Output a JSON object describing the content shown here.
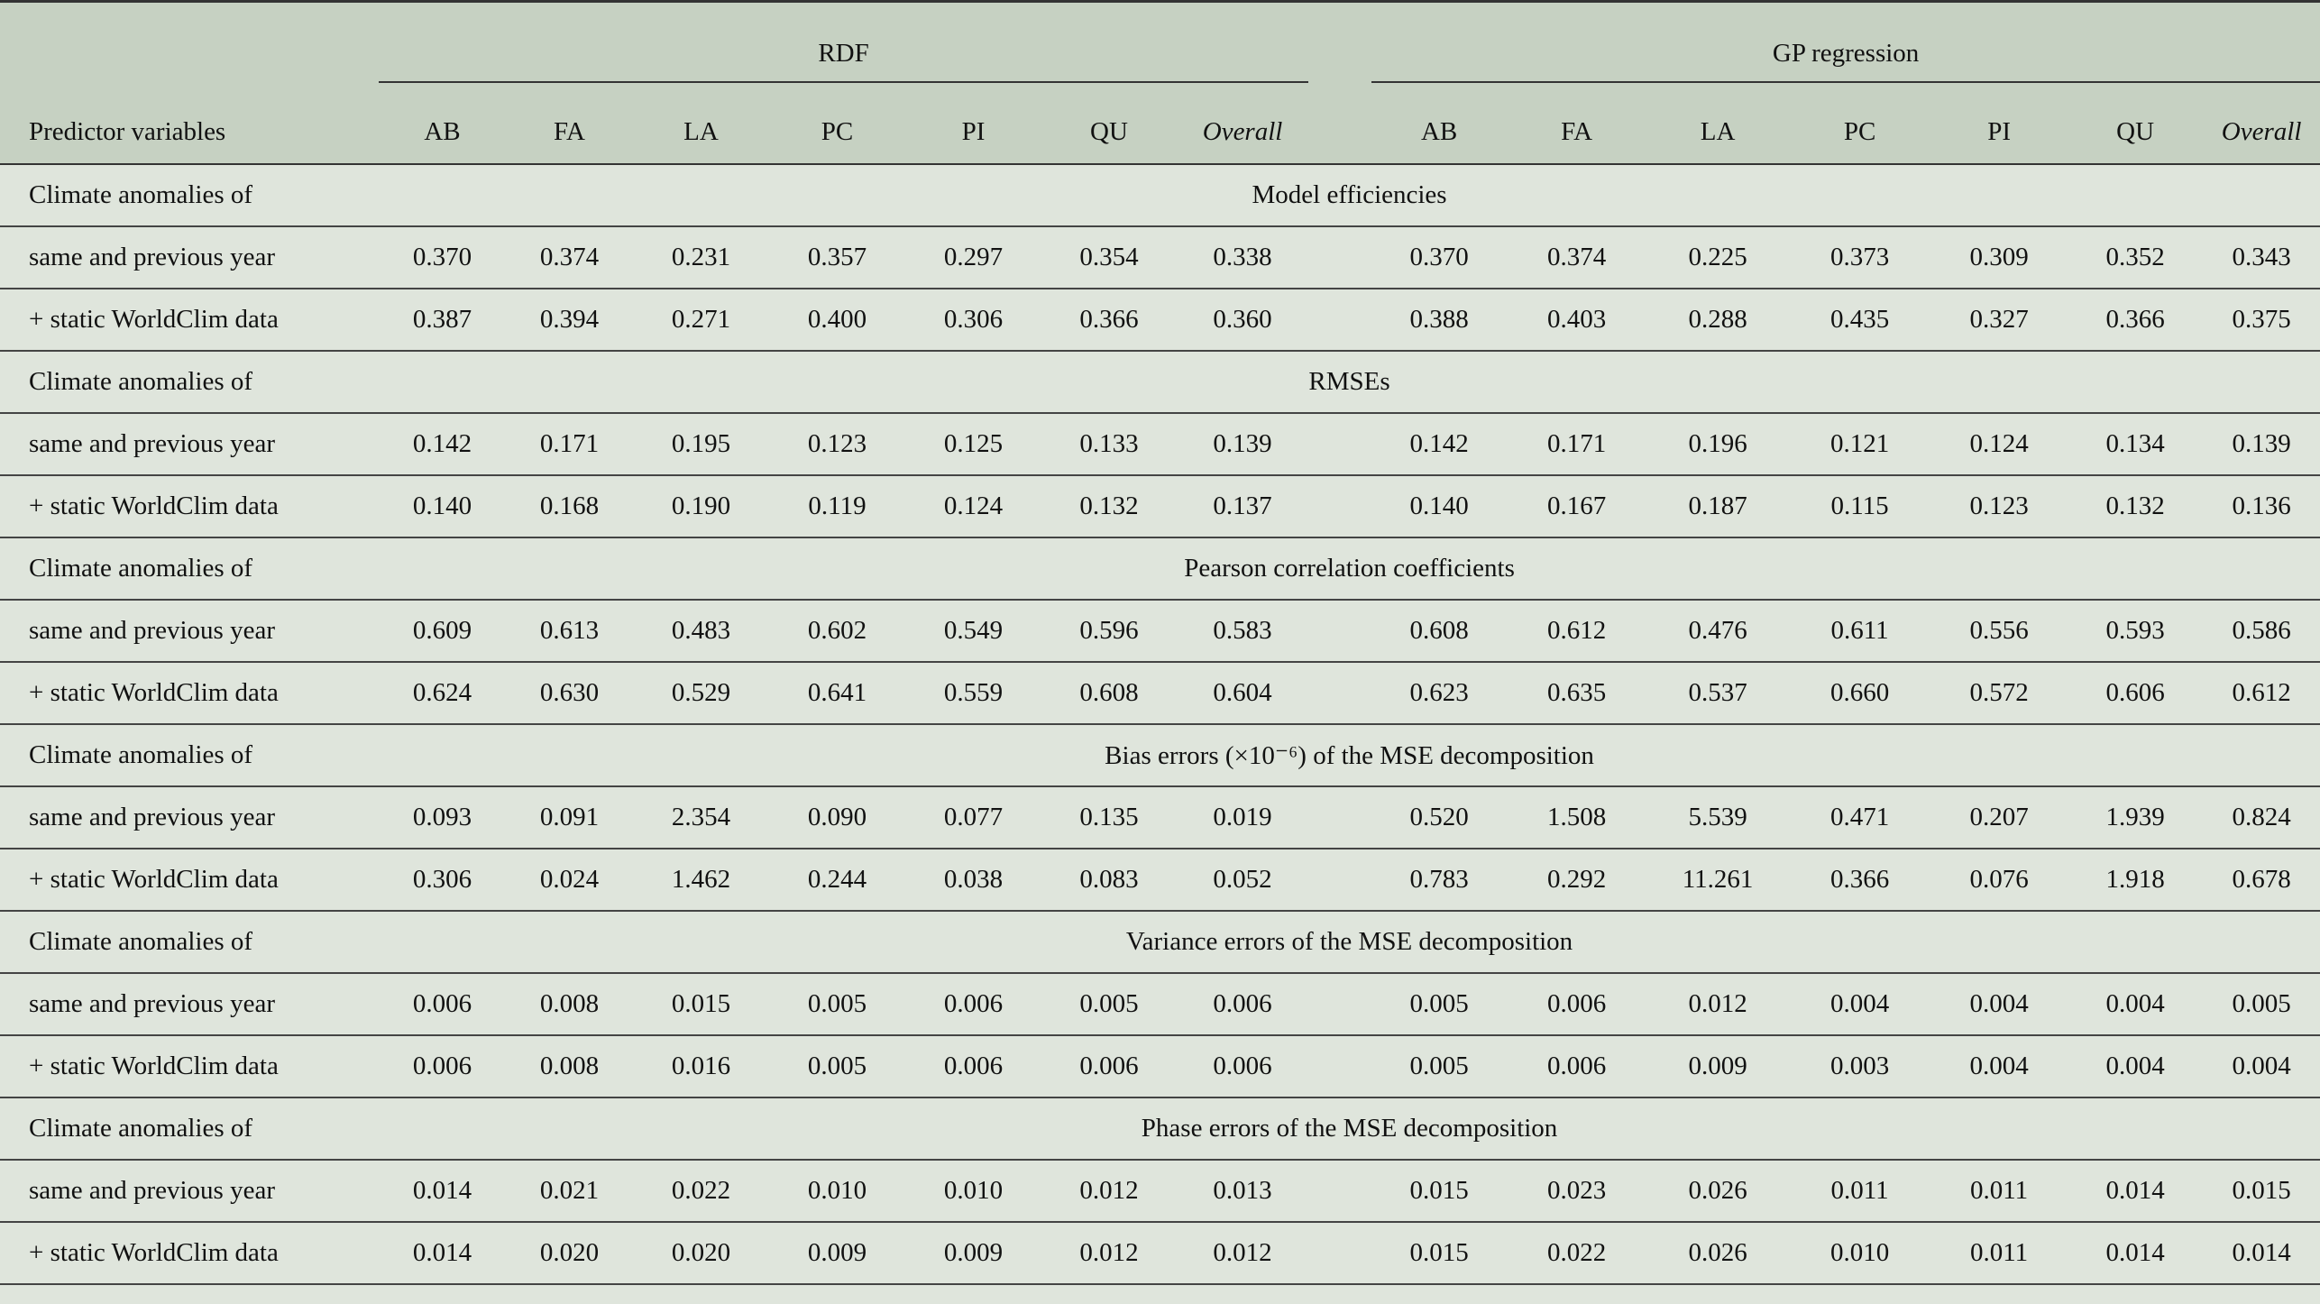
{
  "table": {
    "row_header": "Predictor variables",
    "groups": [
      {
        "name": "RDF",
        "columns": [
          "AB",
          "FA",
          "LA",
          "PC",
          "PI",
          "QU",
          "Overall"
        ]
      },
      {
        "name": "GP regression",
        "columns": [
          "AB",
          "FA",
          "LA",
          "PC",
          "PI",
          "QU",
          "Overall"
        ]
      }
    ],
    "sections": [
      {
        "label": "Climate anomalies of",
        "title": "Model efficiencies",
        "rows": [
          {
            "label": "same and previous year",
            "values": [
              "0.370",
              "0.374",
              "0.231",
              "0.357",
              "0.297",
              "0.354",
              "0.338",
              "0.370",
              "0.374",
              "0.225",
              "0.373",
              "0.309",
              "0.352",
              "0.343"
            ]
          },
          {
            "label": "+ static WorldClim data",
            "values": [
              "0.387",
              "0.394",
              "0.271",
              "0.400",
              "0.306",
              "0.366",
              "0.360",
              "0.388",
              "0.403",
              "0.288",
              "0.435",
              "0.327",
              "0.366",
              "0.375"
            ]
          }
        ]
      },
      {
        "label": "Climate anomalies of",
        "title": "RMSEs",
        "rows": [
          {
            "label": "same and previous year",
            "values": [
              "0.142",
              "0.171",
              "0.195",
              "0.123",
              "0.125",
              "0.133",
              "0.139",
              "0.142",
              "0.171",
              "0.196",
              "0.121",
              "0.124",
              "0.134",
              "0.139"
            ]
          },
          {
            "label": "+ static WorldClim data",
            "values": [
              "0.140",
              "0.168",
              "0.190",
              "0.119",
              "0.124",
              "0.132",
              "0.137",
              "0.140",
              "0.167",
              "0.187",
              "0.115",
              "0.123",
              "0.132",
              "0.136"
            ]
          }
        ]
      },
      {
        "label": "Climate anomalies of",
        "title": "Pearson correlation coefficients",
        "rows": [
          {
            "label": "same and previous year",
            "values": [
              "0.609",
              "0.613",
              "0.483",
              "0.602",
              "0.549",
              "0.596",
              "0.583",
              "0.608",
              "0.612",
              "0.476",
              "0.611",
              "0.556",
              "0.593",
              "0.586"
            ]
          },
          {
            "label": "+ static WorldClim data",
            "values": [
              "0.624",
              "0.630",
              "0.529",
              "0.641",
              "0.559",
              "0.608",
              "0.604",
              "0.623",
              "0.635",
              "0.537",
              "0.660",
              "0.572",
              "0.606",
              "0.612"
            ]
          }
        ]
      },
      {
        "label": "Climate anomalies of",
        "title": "Bias errors (×10⁻⁶) of the MSE decomposition",
        "rows": [
          {
            "label": "same and previous year",
            "values": [
              "0.093",
              "0.091",
              "2.354",
              "0.090",
              "0.077",
              "0.135",
              "0.019",
              "0.520",
              "1.508",
              "5.539",
              "0.471",
              "0.207",
              "1.939",
              "0.824"
            ]
          },
          {
            "label": "+ static WorldClim data",
            "values": [
              "0.306",
              "0.024",
              "1.462",
              "0.244",
              "0.038",
              "0.083",
              "0.052",
              "0.783",
              "0.292",
              "11.261",
              "0.366",
              "0.076",
              "1.918",
              "0.678"
            ]
          }
        ]
      },
      {
        "label": "Climate anomalies of",
        "title": "Variance errors of the MSE decomposition",
        "rows": [
          {
            "label": "same and previous year",
            "values": [
              "0.006",
              "0.008",
              "0.015",
              "0.005",
              "0.006",
              "0.005",
              "0.006",
              "0.005",
              "0.006",
              "0.012",
              "0.004",
              "0.004",
              "0.004",
              "0.005"
            ]
          },
          {
            "label": "+ static WorldClim data",
            "values": [
              "0.006",
              "0.008",
              "0.016",
              "0.005",
              "0.006",
              "0.006",
              "0.006",
              "0.005",
              "0.006",
              "0.009",
              "0.003",
              "0.004",
              "0.004",
              "0.004"
            ]
          }
        ]
      },
      {
        "label": "Climate anomalies of",
        "title": "Phase errors of the MSE decomposition",
        "rows": [
          {
            "label": "same and previous year",
            "values": [
              "0.014",
              "0.021",
              "0.022",
              "0.010",
              "0.010",
              "0.012",
              "0.013",
              "0.015",
              "0.023",
              "0.026",
              "0.011",
              "0.011",
              "0.014",
              "0.015"
            ]
          },
          {
            "label": "+ static WorldClim data",
            "values": [
              "0.014",
              "0.020",
              "0.020",
              "0.009",
              "0.009",
              "0.012",
              "0.012",
              "0.015",
              "0.022",
              "0.026",
              "0.010",
              "0.011",
              "0.014",
              "0.014"
            ]
          }
        ]
      }
    ]
  }
}
